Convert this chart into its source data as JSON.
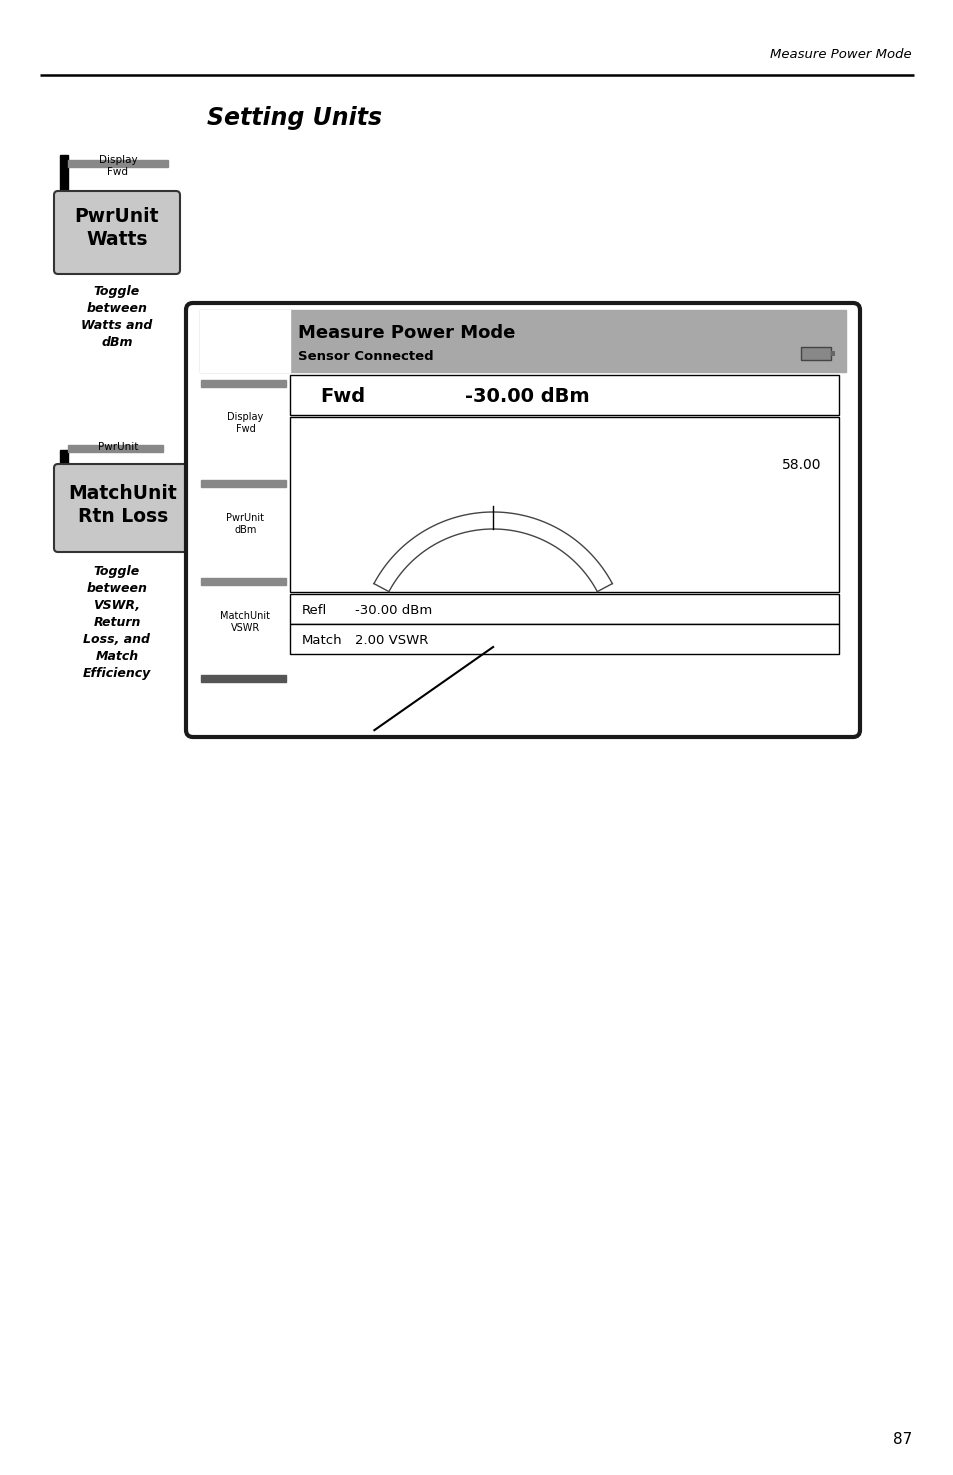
{
  "page_header_right": "Measure Power Mode",
  "title": "Setting Units",
  "button1_line1": "PwrUnit",
  "button1_line2": "Watts",
  "button1_label_above": "Display\nFwd",
  "button1_toggle_text": "Toggle\nbetween\nWatts and\ndBm",
  "button2_line1": "MatchUnit",
  "button2_line2": "Rtn Loss",
  "button2_label_above": "PwrUnit",
  "button2_toggle_text": "Toggle\nbetween\nVSWR,\nReturn\nLoss, and\nMatch\nEfficiency",
  "screen_title": "Measure Power Mode",
  "screen_subtitle": "Sensor Connected",
  "fwd_label": "Fwd",
  "fwd_value": "-30.00 dBm",
  "gauge_value": "58.00",
  "sidebar_label1": "Display\nFwd",
  "sidebar_label2": "PwrUnit\ndBm",
  "sidebar_label3": "MatchUnit\nVSWR",
  "refl_label": "Refl",
  "refl_value": "-30.00 dBm",
  "match_label": "Match",
  "match_value": "2.00 VSWR",
  "page_number": "87",
  "bg_color": "#ffffff",
  "screen_header_color": "#a8a8a8",
  "screen_border_color": "#1a1a1a",
  "button_bg": "#c8c8c8",
  "button_border": "#333333",
  "sidebar_bar_color": "#888888",
  "dark_bar_color": "#555555"
}
